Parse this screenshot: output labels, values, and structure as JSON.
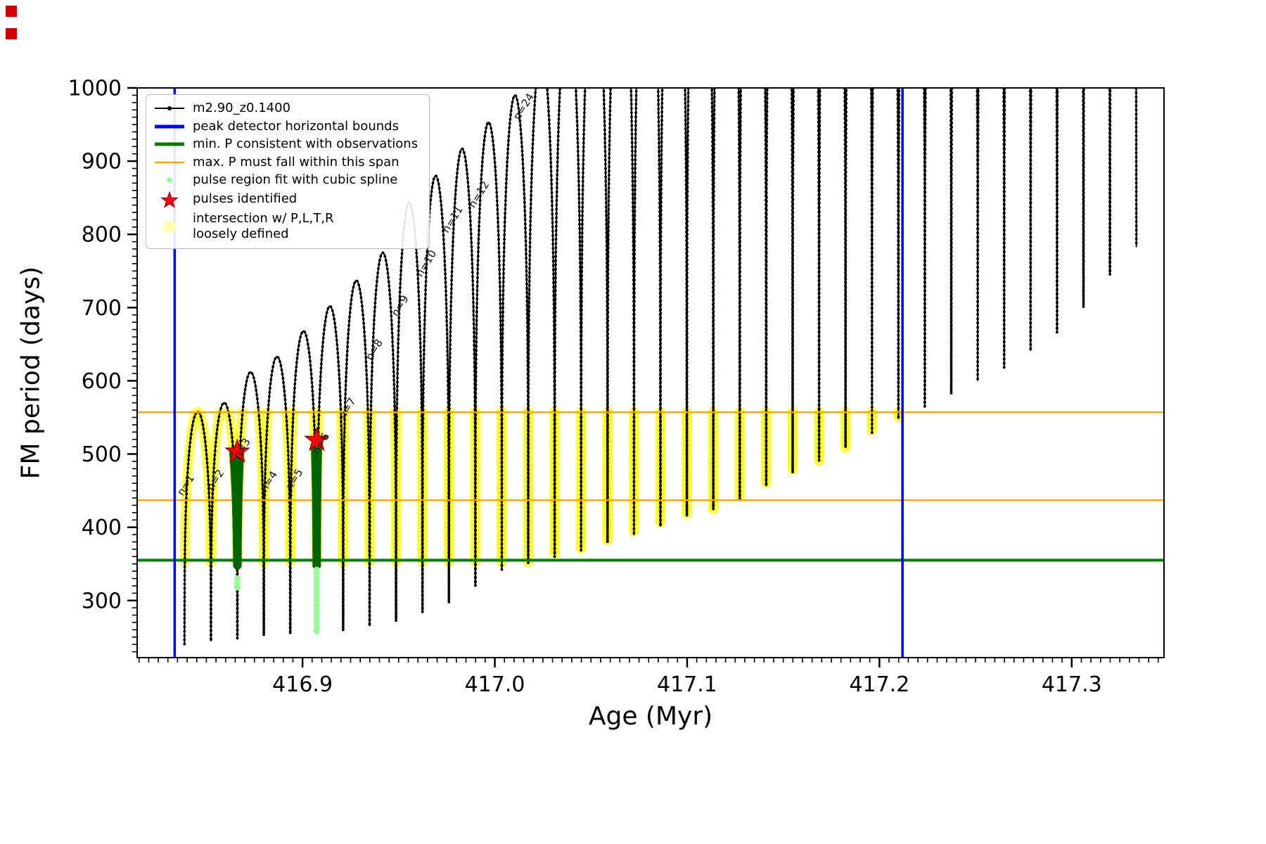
{
  "chart_data": {
    "type": "line",
    "xlabel": "Age (Myr)",
    "ylabel": "FM period (days)",
    "xlim": [
      416.814,
      417.348
    ],
    "ylim": [
      222,
      1000
    ],
    "xticks": [
      416.9,
      417.0,
      417.1,
      417.2,
      417.3
    ],
    "xtick_labels": [
      "416.9",
      "417.0",
      "417.1",
      "417.2",
      "417.3"
    ],
    "yticks": [
      300,
      400,
      500,
      600,
      700,
      800,
      900,
      1000
    ],
    "x_minor_step": 0.005,
    "y_minor_step": 10,
    "series_label": "m2.90_z0.1400",
    "pulse_track": {
      "first_center": 416.8455,
      "spacing": 0.01375,
      "count": 36,
      "half_width": 0.006875,
      "shape_exponent": 0.3,
      "peaks_visible": [
        558,
        570,
        612,
        633,
        668,
        702,
        737,
        775,
        843,
        880,
        917,
        953,
        990
      ],
      "peak_growth_per_pulse": 60,
      "peak_cap": 1500,
      "trough_profile": [
        [
          416.83,
          238
        ],
        [
          416.88,
          252
        ],
        [
          416.92,
          258
        ],
        [
          416.95,
          272
        ],
        [
          416.98,
          300
        ],
        [
          417.0,
          340
        ],
        [
          417.02,
          352
        ],
        [
          417.05,
          372
        ],
        [
          417.08,
          395
        ],
        [
          417.1,
          415
        ],
        [
          417.12,
          428
        ],
        [
          417.15,
          468
        ],
        [
          417.18,
          505
        ],
        [
          417.2,
          535
        ],
        [
          417.21,
          548
        ],
        [
          417.24,
          585
        ],
        [
          417.27,
          625
        ],
        [
          417.3,
          680
        ],
        [
          417.32,
          745
        ],
        [
          417.34,
          800
        ]
      ]
    },
    "peak_detector_bounds_x": [
      416.8335,
      417.212
    ],
    "min_P_line_y": 355,
    "max_P_span_y": [
      437,
      557
    ],
    "intersection_band": {
      "x_min": 416.8335,
      "x_max": 417.212,
      "y_min": 353,
      "y_max": 561
    },
    "spline_regions": [
      {
        "x_center": 416.8661,
        "y_min": 348,
        "y_max": 507,
        "spline_dots_y": [
          318,
          334
        ]
      },
      {
        "x_center": 416.9074,
        "y_min": 348,
        "y_max": 506,
        "spline_dots_y": [
          252,
          346
        ]
      }
    ],
    "pulses_identified": [
      [
        416.8661,
        503
      ],
      [
        416.9074,
        519
      ]
    ],
    "pulse_number_labels": [
      {
        "text": "n=1",
        "x": 416.8408,
        "y": 455
      },
      {
        "text": "n=2",
        "x": 416.8562,
        "y": 462
      },
      {
        "text": "n=3",
        "x": 416.87,
        "y": 505
      },
      {
        "text": "n=4",
        "x": 416.884,
        "y": 460
      },
      {
        "text": "n=5",
        "x": 416.8972,
        "y": 463
      },
      {
        "text": "n=6",
        "x": 416.911,
        "y": 512
      },
      {
        "text": "n=7",
        "x": 416.9248,
        "y": 560
      },
      {
        "text": "n=8",
        "x": 416.9388,
        "y": 640
      },
      {
        "text": "n=9",
        "x": 416.9522,
        "y": 700
      },
      {
        "text": "n=10",
        "x": 416.9658,
        "y": 758
      },
      {
        "text": "n=11",
        "x": 416.9795,
        "y": 818
      },
      {
        "text": "n=12",
        "x": 416.9932,
        "y": 852
      },
      {
        "text": "n=24",
        "x": 417.0165,
        "y": 972
      }
    ],
    "colors": {
      "curve": "#000000",
      "bounds": "#0000ff",
      "min_P": "#008000",
      "span": "#ffa500",
      "spline_fit": "#006400",
      "spline_region": "#98fb98",
      "pulse": "#ff0000",
      "intersection": "#ffff00",
      "legend_intersection_dot": "#ffffb0"
    },
    "legend": [
      {
        "label": "m2.90_z0.1400"
      },
      {
        "label": "peak detector horizontal bounds"
      },
      {
        "label": "min. P consistent with observations"
      },
      {
        "label": "max. P must fall within this span"
      },
      {
        "label": "pulse region fit with cubic spline"
      },
      {
        "label": "pulses identified"
      },
      {
        "label": "intersection w/ P,L,T,R",
        "label2": "loosely defined"
      }
    ]
  }
}
